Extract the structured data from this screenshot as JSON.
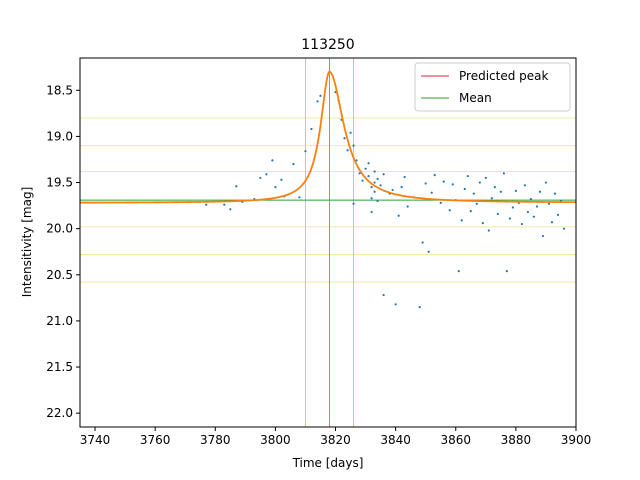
{
  "chart_data": {
    "type": "scatter",
    "title": "113250",
    "xlabel": "Time [days]",
    "ylabel": "Intensitivity [mag]",
    "xlim": [
      3735,
      3900
    ],
    "ylim": [
      22.15,
      18.15
    ],
    "y_inverted": true,
    "xticks": [
      3740,
      3760,
      3780,
      3800,
      3820,
      3840,
      3860,
      3880,
      3900
    ],
    "yticks": [
      18.5,
      19.0,
      19.5,
      20.0,
      20.5,
      21.0,
      21.5,
      22.0
    ],
    "grid": false,
    "legend": {
      "placement": "top-right",
      "entries": [
        {
          "label": "Predicted peak",
          "color": "#d62728"
        },
        {
          "label": "Mean",
          "color": "#2ca02c"
        }
      ]
    },
    "colors": {
      "points": "#1f77b4",
      "fit": "#ff7f0e",
      "peak_line": "#e57373",
      "mean_line": "#2ca02c",
      "window_lines": "#e6c84a",
      "band_lines": "#f0e9a8"
    },
    "predicted_peak_x": 3818,
    "window_x": [
      3810,
      3826
    ],
    "mean_y": 19.69,
    "band_y": [
      18.8,
      19.1,
      19.38,
      19.98,
      20.28,
      20.58
    ],
    "fit_curve": {
      "baseline": 19.72,
      "peak_x": 3818,
      "peak_y": 18.3,
      "tau_before": 3.6,
      "tau_after": 5.8
    },
    "points": [
      [
        3777,
        19.74
      ],
      [
        3783,
        19.74
      ],
      [
        3785,
        19.79
      ],
      [
        3787,
        19.54
      ],
      [
        3789,
        19.71
      ],
      [
        3793,
        19.68
      ],
      [
        3795,
        19.45
      ],
      [
        3797,
        19.41
      ],
      [
        3799,
        19.26
      ],
      [
        3800,
        19.55
      ],
      [
        3802,
        19.47
      ],
      [
        3803,
        19.65
      ],
      [
        3806,
        19.3
      ],
      [
        3808,
        19.66
      ],
      [
        3810,
        19.16
      ],
      [
        3812,
        18.92
      ],
      [
        3814,
        18.62
      ],
      [
        3815,
        18.56
      ],
      [
        3818,
        18.3
      ],
      [
        3820,
        18.52
      ],
      [
        3821,
        18.61
      ],
      [
        3822,
        18.82
      ],
      [
        3823,
        19.02
      ],
      [
        3824,
        19.15
      ],
      [
        3825,
        18.96
      ],
      [
        3826,
        19.1
      ],
      [
        3826,
        19.73
      ],
      [
        3827,
        19.26
      ],
      [
        3828,
        19.4
      ],
      [
        3829,
        19.48
      ],
      [
        3830,
        19.35
      ],
      [
        3831,
        19.29
      ],
      [
        3831,
        19.43
      ],
      [
        3832,
        19.55
      ],
      [
        3832,
        19.67
      ],
      [
        3832,
        19.82
      ],
      [
        3833,
        19.38
      ],
      [
        3833,
        19.5
      ],
      [
        3833,
        19.6
      ],
      [
        3834,
        19.46
      ],
      [
        3834,
        19.7
      ],
      [
        3835,
        19.53
      ],
      [
        3836,
        19.41
      ],
      [
        3836,
        20.72
      ],
      [
        3838,
        19.62
      ],
      [
        3839,
        19.58
      ],
      [
        3840,
        20.82
      ],
      [
        3841,
        19.86
      ],
      [
        3842,
        19.55
      ],
      [
        3843,
        19.44
      ],
      [
        3844,
        19.76
      ],
      [
        3846,
        19.66
      ],
      [
        3848,
        20.85
      ],
      [
        3849,
        20.15
      ],
      [
        3850,
        19.51
      ],
      [
        3851,
        20.25
      ],
      [
        3852,
        19.61
      ],
      [
        3853,
        19.42
      ],
      [
        3855,
        19.72
      ],
      [
        3856,
        19.49
      ],
      [
        3858,
        19.8
      ],
      [
        3859,
        19.52
      ],
      [
        3860,
        19.69
      ],
      [
        3861,
        20.46
      ],
      [
        3862,
        19.91
      ],
      [
        3863,
        19.57
      ],
      [
        3864,
        19.43
      ],
      [
        3865,
        19.81
      ],
      [
        3866,
        19.62
      ],
      [
        3867,
        19.73
      ],
      [
        3868,
        19.5
      ],
      [
        3869,
        19.94
      ],
      [
        3870,
        19.45
      ],
      [
        3871,
        20.02
      ],
      [
        3872,
        19.67
      ],
      [
        3873,
        19.55
      ],
      [
        3874,
        19.84
      ],
      [
        3875,
        19.6
      ],
      [
        3876,
        19.4
      ],
      [
        3877,
        20.46
      ],
      [
        3878,
        19.89
      ],
      [
        3879,
        19.77
      ],
      [
        3880,
        19.59
      ],
      [
        3881,
        19.72
      ],
      [
        3882,
        19.95
      ],
      [
        3883,
        19.53
      ],
      [
        3884,
        19.82
      ],
      [
        3885,
        19.68
      ],
      [
        3886,
        19.87
      ],
      [
        3887,
        19.76
      ],
      [
        3888,
        19.6
      ],
      [
        3889,
        20.08
      ],
      [
        3890,
        19.5
      ],
      [
        3891,
        19.73
      ],
      [
        3892,
        19.93
      ],
      [
        3893,
        19.62
      ],
      [
        3894,
        19.85
      ],
      [
        3895,
        19.7
      ],
      [
        3896,
        20.0
      ]
    ]
  }
}
